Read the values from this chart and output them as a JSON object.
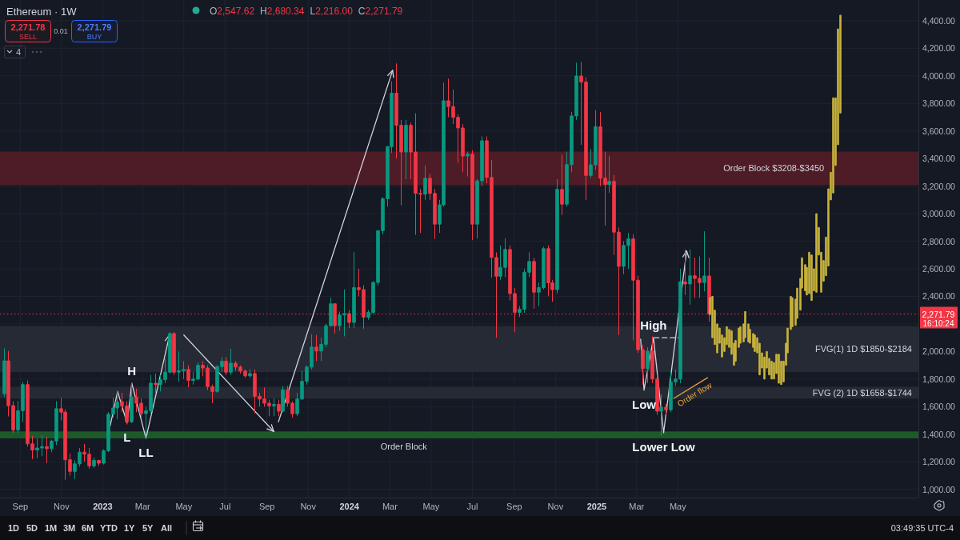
{
  "chart_data": {
    "type": "candlestick",
    "title": "Ethereum · 1W",
    "x": [
      "2022-08-08",
      "2022-08-15",
      "2022-08-22",
      "2022-08-29",
      "2022-09-05",
      "2022-09-12",
      "2022-09-19",
      "2022-09-26",
      "2022-10-03",
      "2022-10-10",
      "2022-10-17",
      "2022-10-24",
      "2022-10-31",
      "2022-11-07",
      "2022-11-14",
      "2022-11-21",
      "2022-11-28",
      "2022-12-05",
      "2022-12-12",
      "2022-12-19",
      "2022-12-26",
      "2023-01-02",
      "2023-01-09",
      "2023-01-16",
      "2023-01-23",
      "2023-01-30",
      "2023-02-06",
      "2023-02-13",
      "2023-02-20",
      "2023-02-27",
      "2023-03-06",
      "2023-03-13",
      "2023-03-20",
      "2023-03-27",
      "2023-04-03",
      "2023-04-10",
      "2023-04-17",
      "2023-04-24",
      "2023-05-01",
      "2023-05-08",
      "2023-05-15",
      "2023-05-22",
      "2023-05-29",
      "2023-06-05",
      "2023-06-12",
      "2023-06-19",
      "2023-06-26",
      "2023-07-03",
      "2023-07-10",
      "2023-07-17",
      "2023-07-24",
      "2023-07-31",
      "2023-08-07",
      "2023-08-14",
      "2023-08-21",
      "2023-08-28",
      "2023-09-04",
      "2023-09-11",
      "2023-09-18",
      "2023-09-25",
      "2023-10-02",
      "2023-10-09",
      "2023-10-16",
      "2023-10-23",
      "2023-10-30",
      "2023-11-06",
      "2023-11-13",
      "2023-11-20",
      "2023-11-27",
      "2023-12-04",
      "2023-12-11",
      "2023-12-18",
      "2023-12-25",
      "2024-01-01",
      "2024-01-08",
      "2024-01-15",
      "2024-01-22",
      "2024-01-29",
      "2024-02-05",
      "2024-02-12",
      "2024-02-19",
      "2024-02-26",
      "2024-03-04",
      "2024-03-11",
      "2024-03-18",
      "2024-03-25",
      "2024-04-01",
      "2024-04-08",
      "2024-04-15",
      "2024-04-22",
      "2024-04-29",
      "2024-05-06",
      "2024-05-13",
      "2024-05-20",
      "2024-05-27",
      "2024-06-03",
      "2024-06-10",
      "2024-06-17",
      "2024-06-24",
      "2024-07-01",
      "2024-07-08",
      "2024-07-15",
      "2024-07-22",
      "2024-07-29",
      "2024-08-05",
      "2024-08-12",
      "2024-08-19",
      "2024-08-26",
      "2024-09-02",
      "2024-09-09",
      "2024-09-16",
      "2024-09-23",
      "2024-09-30",
      "2024-10-07",
      "2024-10-14",
      "2024-10-21",
      "2024-10-28",
      "2024-11-04",
      "2024-11-11",
      "2024-11-18",
      "2024-11-25",
      "2024-12-02",
      "2024-12-09",
      "2024-12-16",
      "2024-12-23",
      "2024-12-30",
      "2025-01-06",
      "2025-01-13",
      "2025-01-20",
      "2025-01-27",
      "2025-02-03",
      "2025-02-10",
      "2025-02-17",
      "2025-02-24",
      "2025-03-03",
      "2025-03-10",
      "2025-03-17",
      "2025-03-24",
      "2025-03-31",
      "2025-04-07",
      "2025-04-14",
      "2025-04-21",
      "2025-04-28",
      "2025-05-05",
      "2025-05-12",
      "2025-05-19",
      "2025-05-26",
      "2025-06-02",
      "2025-06-09",
      "2025-06-16"
    ],
    "ohlc": [
      [
        1694,
        2023,
        1670,
        1932
      ],
      [
        1932,
        2004,
        1529,
        1607
      ],
      [
        1607,
        1640,
        1410,
        1430
      ],
      [
        1430,
        1640,
        1410,
        1570
      ],
      [
        1570,
        1780,
        1490,
        1760
      ],
      [
        1760,
        1790,
        1310,
        1330
      ],
      [
        1330,
        1390,
        1220,
        1285
      ],
      [
        1285,
        1370,
        1225,
        1300
      ],
      [
        1300,
        1390,
        1240,
        1310
      ],
      [
        1310,
        1380,
        1190,
        1295
      ],
      [
        1295,
        1360,
        1270,
        1350
      ],
      [
        1350,
        1640,
        1320,
        1585
      ],
      [
        1585,
        1665,
        1500,
        1560
      ],
      [
        1560,
        1580,
        1070,
        1215
      ],
      [
        1215,
        1260,
        1100,
        1130
      ],
      [
        1130,
        1210,
        1075,
        1185
      ],
      [
        1185,
        1300,
        1165,
        1270
      ],
      [
        1270,
        1330,
        1200,
        1255
      ],
      [
        1255,
        1300,
        1150,
        1170
      ],
      [
        1170,
        1230,
        1155,
        1210
      ],
      [
        1210,
        1215,
        1170,
        1190
      ],
      [
        1190,
        1290,
        1180,
        1280
      ],
      [
        1280,
        1560,
        1270,
        1545
      ],
      [
        1545,
        1665,
        1520,
        1590
      ],
      [
        1590,
        1715,
        1510,
        1635
      ],
      [
        1635,
        1700,
        1560,
        1605
      ],
      [
        1605,
        1640,
        1470,
        1490
      ],
      [
        1490,
        1770,
        1480,
        1670
      ],
      [
        1670,
        1730,
        1560,
        1625
      ],
      [
        1625,
        1660,
        1520,
        1550
      ],
      [
        1550,
        1600,
        1370,
        1570
      ],
      [
        1570,
        1830,
        1550,
        1770
      ],
      [
        1770,
        1840,
        1700,
        1760
      ],
      [
        1760,
        1830,
        1710,
        1795
      ],
      [
        1795,
        1945,
        1770,
        1850
      ],
      [
        1850,
        2140,
        1840,
        2130
      ],
      [
        2130,
        2140,
        1830,
        1850
      ],
      [
        1850,
        2000,
        1780,
        1860
      ],
      [
        1860,
        1930,
        1800,
        1870
      ],
      [
        1870,
        1900,
        1740,
        1790
      ],
      [
        1790,
        1850,
        1760,
        1800
      ],
      [
        1800,
        1920,
        1790,
        1900
      ],
      [
        1900,
        1930,
        1820,
        1880
      ],
      [
        1880,
        1900,
        1720,
        1745
      ],
      [
        1745,
        1760,
        1625,
        1710
      ],
      [
        1710,
        1900,
        1700,
        1890
      ],
      [
        1890,
        1960,
        1850,
        1930
      ],
      [
        1930,
        1960,
        1830,
        1850
      ],
      [
        1850,
        2020,
        1830,
        1915
      ],
      [
        1915,
        1930,
        1860,
        1887
      ],
      [
        1887,
        1900,
        1840,
        1858
      ],
      [
        1858,
        1870,
        1810,
        1823
      ],
      [
        1823,
        1870,
        1810,
        1840
      ],
      [
        1840,
        1870,
        1550,
        1675
      ],
      [
        1675,
        1700,
        1600,
        1655
      ],
      [
        1655,
        1740,
        1600,
        1625
      ],
      [
        1625,
        1650,
        1530,
        1606
      ],
      [
        1606,
        1660,
        1530,
        1616
      ],
      [
        1616,
        1650,
        1530,
        1567
      ],
      [
        1567,
        1750,
        1560,
        1722
      ],
      [
        1722,
        1750,
        1600,
        1625
      ],
      [
        1625,
        1640,
        1520,
        1548
      ],
      [
        1548,
        1700,
        1530,
        1655
      ],
      [
        1655,
        1860,
        1650,
        1784
      ],
      [
        1784,
        1900,
        1760,
        1887
      ],
      [
        1887,
        2125,
        1870,
        2032
      ],
      [
        2032,
        2120,
        1930,
        2003
      ],
      [
        2003,
        2100,
        1930,
        2052
      ],
      [
        2052,
        2200,
        2030,
        2187
      ],
      [
        2187,
        2390,
        2180,
        2346
      ],
      [
        2346,
        2350,
        2130,
        2187
      ],
      [
        2187,
        2290,
        2150,
        2265
      ],
      [
        2265,
        2450,
        2110,
        2275
      ],
      [
        2275,
        2300,
        2170,
        2211
      ],
      [
        2211,
        2720,
        2170,
        2463
      ],
      [
        2463,
        2600,
        2400,
        2449
      ],
      [
        2449,
        2480,
        2165,
        2249
      ],
      [
        2249,
        2300,
        2230,
        2284
      ],
      [
        2284,
        2510,
        2270,
        2501
      ],
      [
        2501,
        2880,
        2480,
        2876
      ],
      [
        2876,
        3120,
        2850,
        3108
      ],
      [
        3108,
        3490,
        3050,
        3486
      ],
      [
        3486,
        3960,
        3440,
        3874
      ],
      [
        3874,
        4090,
        3400,
        3641
      ],
      [
        3641,
        3680,
        3060,
        3447
      ],
      [
        3447,
        3680,
        3250,
        3641
      ],
      [
        3641,
        3660,
        3250,
        3447
      ],
      [
        3447,
        3728,
        2846,
        3147
      ],
      [
        3147,
        3180,
        2860,
        3141
      ],
      [
        3141,
        3350,
        3100,
        3257
      ],
      [
        3257,
        3290,
        3100,
        3147
      ],
      [
        3147,
        3180,
        2817,
        2924
      ],
      [
        2924,
        3100,
        2860,
        3064
      ],
      [
        3064,
        3951,
        3050,
        3819
      ],
      [
        3819,
        3980,
        3700,
        3777
      ],
      [
        3777,
        3900,
        3650,
        3699
      ],
      [
        3699,
        3720,
        3370,
        3622
      ],
      [
        3622,
        3650,
        3300,
        3418
      ],
      [
        3418,
        3450,
        3270,
        3432
      ],
      [
        3432,
        3460,
        2808,
        2924
      ],
      [
        2924,
        3250,
        2820,
        3238
      ],
      [
        3238,
        3560,
        3200,
        3529
      ],
      [
        3529,
        3560,
        3220,
        3263
      ],
      [
        3263,
        3390,
        2536,
        2682
      ],
      [
        2682,
        2720,
        2100,
        2546
      ],
      [
        2546,
        2769,
        2520,
        2610
      ],
      [
        2610,
        2820,
        2540,
        2740
      ],
      [
        2740,
        2770,
        2370,
        2420
      ],
      [
        2420,
        2460,
        2139,
        2284
      ],
      [
        2284,
        2330,
        2250,
        2307
      ],
      [
        2307,
        2600,
        2280,
        2575
      ],
      [
        2575,
        2720,
        2540,
        2653
      ],
      [
        2653,
        2680,
        2310,
        2430
      ],
      [
        2430,
        2500,
        2330,
        2463
      ],
      [
        2463,
        2760,
        2450,
        2746
      ],
      [
        2746,
        2770,
        2400,
        2498
      ],
      [
        2498,
        2520,
        2360,
        2449
      ],
      [
        2449,
        3250,
        2420,
        3176
      ],
      [
        3176,
        3428,
        2990,
        3069
      ],
      [
        3069,
        3450,
        3050,
        3356
      ],
      [
        3356,
        3738,
        3300,
        3709
      ],
      [
        3709,
        4096,
        3680,
        3999
      ],
      [
        3999,
        4100,
        3500,
        3955
      ],
      [
        3955,
        3990,
        3098,
        3277
      ],
      [
        3277,
        3470,
        3260,
        3354
      ],
      [
        3354,
        3750,
        3320,
        3631
      ],
      [
        3631,
        3738,
        3200,
        3257
      ],
      [
        3257,
        3450,
        2914,
        3211
      ],
      [
        3211,
        3420,
        3150,
        3234
      ],
      [
        3234,
        3280,
        2700,
        2866
      ],
      [
        2866,
        2900,
        2120,
        2618
      ],
      [
        2618,
        2800,
        2560,
        2769
      ],
      [
        2769,
        2860,
        2600,
        2817
      ],
      [
        2817,
        2850,
        2080,
        2517
      ],
      [
        2517,
        2550,
        1990,
        2013
      ],
      [
        2013,
        2050,
        1760,
        1877
      ],
      [
        1877,
        2030,
        1771,
        2003
      ],
      [
        2003,
        2110,
        1770,
        1800
      ],
      [
        1800,
        1830,
        1540,
        1567
      ],
      [
        1567,
        1690,
        1390,
        1596
      ],
      [
        1596,
        1620,
        1540,
        1577
      ],
      [
        1577,
        1860,
        1560,
        1780
      ],
      [
        1780,
        1870,
        1750,
        1800
      ],
      [
        1800,
        2600,
        1770,
        2506
      ],
      [
        2506,
        2740,
        2410,
        2490
      ],
      [
        2490,
        2740,
        2340,
        2549
      ],
      [
        2549,
        2680,
        2390,
        2530
      ],
      [
        2530,
        2690,
        2390,
        2500
      ],
      [
        2500,
        2872,
        2436,
        2548
      ],
      [
        2547.62,
        2680.34,
        2216,
        2271.79
      ]
    ],
    "colors": [
      "#089981",
      "#f23645",
      "#f23645",
      "#089981",
      "#089981",
      "#f23645",
      "#f23645",
      "#089981",
      "#089981",
      "#f23645",
      "#089981",
      "#089981",
      "#f23645",
      "#f23645",
      "#f23645",
      "#089981",
      "#089981",
      "#f23645",
      "#f23645",
      "#089981",
      "#f23645",
      "#089981",
      "#089981",
      "#089981",
      "#089981",
      "#f23645",
      "#f23645",
      "#089981",
      "#f23645",
      "#f23645",
      "#089981",
      "#089981",
      "#f23645",
      "#089981",
      "#089981",
      "#089981",
      "#f23645",
      "#089981",
      "#089981",
      "#f23645",
      "#089981",
      "#089981",
      "#f23645",
      "#f23645",
      "#f23645",
      "#089981",
      "#089981",
      "#f23645",
      "#089981",
      "#f23645",
      "#f23645",
      "#f23645",
      "#089981",
      "#f23645",
      "#f23645",
      "#f23645",
      "#f23645",
      "#089981",
      "#f23645",
      "#089981",
      "#f23645",
      "#f23645",
      "#089981",
      "#089981",
      "#089981",
      "#089981",
      "#f23645",
      "#089981",
      "#089981",
      "#089981",
      "#f23645",
      "#089981",
      "#089981",
      "#f23645",
      "#089981",
      "#f23645",
      "#f23645",
      "#089981",
      "#089981",
      "#089981",
      "#089981",
      "#089981",
      "#089981",
      "#f23645",
      "#f23645",
      "#089981",
      "#f23645",
      "#f23645",
      "#f23645",
      "#089981",
      "#f23645",
      "#f23645",
      "#089981",
      "#089981",
      "#f23645",
      "#f23645",
      "#f23645",
      "#f23645",
      "#089981",
      "#f23645",
      "#089981",
      "#089981",
      "#f23645",
      "#f23645",
      "#f23645",
      "#089981",
      "#089981",
      "#f23645",
      "#f23645",
      "#089981",
      "#089981",
      "#089981",
      "#f23645",
      "#089981",
      "#089981",
      "#f23645",
      "#f23645",
      "#089981",
      "#f23645",
      "#089981",
      "#089981",
      "#089981",
      "#f23645",
      "#f23645",
      "#089981",
      "#089981",
      "#f23645",
      "#f23645",
      "#089981",
      "#f23645",
      "#f23645",
      "#089981",
      "#089981",
      "#f23645",
      "#f23645",
      "#f23645",
      "#089981",
      "#f23645",
      "#f23645",
      "#089981",
      "#f23645",
      "#089981",
      "#089981",
      "#089981",
      "#f23645",
      "#089981",
      "#f23645",
      "#f23645",
      "#089981",
      "#f23645"
    ],
    "series": [
      {
        "type": "candlestick",
        "color": "#c8b43c",
        "x": [
          "2025-06-18",
          "2025-06-21",
          "2025-06-25",
          "2025-06-28",
          "2025-07-02",
          "2025-07-05",
          "2025-07-09",
          "2025-07-12",
          "2025-07-16",
          "2025-07-19",
          "2025-07-23",
          "2025-07-26",
          "2025-07-30",
          "2025-08-02",
          "2025-08-06",
          "2025-08-09",
          "2025-08-13",
          "2025-08-16",
          "2025-08-20",
          "2025-08-23",
          "2025-08-27",
          "2025-08-30",
          "2025-09-03",
          "2025-09-06",
          "2025-09-10",
          "2025-09-13",
          "2025-09-17",
          "2025-09-20",
          "2025-09-24",
          "2025-09-27",
          "2025-10-01",
          "2025-10-04",
          "2025-10-08",
          "2025-10-11",
          "2025-10-15",
          "2025-10-18",
          "2025-10-22",
          "2025-10-25",
          "2025-10-29",
          "2025-11-01",
          "2025-11-05",
          "2025-11-08",
          "2025-11-12",
          "2025-11-15",
          "2025-11-19",
          "2025-11-22",
          "2025-11-26",
          "2025-11-29",
          "2025-12-03",
          "2025-12-06",
          "2025-12-10",
          "2025-12-13",
          "2025-12-17",
          "2025-12-20",
          "2025-12-24",
          "2025-12-27"
        ],
        "ohlc": [
          [
            2268,
            2392,
            2268,
            2392
          ],
          [
            2100,
            2400,
            2100,
            2400
          ],
          [
            2050,
            2300,
            2050,
            2300
          ],
          [
            1990,
            2200,
            1990,
            2200
          ],
          [
            2060,
            2170,
            2060,
            2170
          ],
          [
            1960,
            2120,
            1960,
            2120
          ],
          [
            2000,
            2100,
            2000,
            2100
          ],
          [
            2050,
            2180,
            2050,
            2180
          ],
          [
            2030,
            2160,
            2030,
            2160
          ],
          [
            1980,
            2150,
            1980,
            2150
          ],
          [
            1900,
            2060,
            1900,
            2060
          ],
          [
            1930,
            2080,
            1930,
            2080
          ],
          [
            2030,
            2170,
            2030,
            2170
          ],
          [
            2060,
            2180,
            2060,
            2180
          ],
          [
            2070,
            2200,
            2070,
            2200
          ],
          [
            2100,
            2290,
            2100,
            2290
          ],
          [
            2070,
            2200,
            2070,
            2200
          ],
          [
            2060,
            2160,
            2060,
            2160
          ],
          [
            2030,
            2130,
            2030,
            2130
          ],
          [
            2000,
            2120,
            2000,
            2120
          ],
          [
            1990,
            2100,
            1990,
            2100
          ],
          [
            1830,
            2060,
            1830,
            2060
          ],
          [
            1880,
            1990,
            1880,
            1990
          ],
          [
            1800,
            1960,
            1800,
            1960
          ],
          [
            1880,
            2000,
            1880,
            2000
          ],
          [
            1830,
            1950,
            1830,
            1950
          ],
          [
            1800,
            1930,
            1800,
            1930
          ],
          [
            1800,
            1920,
            1800,
            1920
          ],
          [
            1840,
            1980,
            1840,
            1980
          ],
          [
            1770,
            1980,
            1770,
            1980
          ],
          [
            1760,
            1930,
            1760,
            1930
          ],
          [
            1780,
            1930,
            1780,
            1930
          ],
          [
            1900,
            2060,
            1900,
            2060
          ],
          [
            1990,
            2170,
            1990,
            2170
          ],
          [
            2160,
            2400,
            2160,
            2400
          ],
          [
            2180,
            2390,
            2180,
            2390
          ],
          [
            2190,
            2380,
            2190,
            2380
          ],
          [
            2240,
            2460,
            2240,
            2460
          ],
          [
            2300,
            2530,
            2300,
            2530
          ],
          [
            2460,
            2680,
            2460,
            2680
          ],
          [
            2440,
            2630,
            2440,
            2630
          ],
          [
            2410,
            2610,
            2410,
            2610
          ],
          [
            2420,
            2720,
            2420,
            2720
          ],
          [
            2370,
            2700,
            2370,
            2700
          ],
          [
            2440,
            2600,
            2440,
            2600
          ],
          [
            2430,
            3000,
            2430,
            3000
          ],
          [
            2700,
            2900,
            2700,
            2900
          ],
          [
            2430,
            2720,
            2430,
            2720
          ],
          [
            2510,
            2660,
            2510,
            2660
          ],
          [
            2550,
            2830,
            2550,
            2830
          ],
          [
            2620,
            3180,
            2620,
            3180
          ],
          [
            3100,
            3300,
            3100,
            3300
          ],
          [
            3150,
            3840,
            3150,
            3840
          ],
          [
            3350,
            3840,
            3350,
            3840
          ],
          [
            3500,
            4340,
            3500,
            4340
          ],
          [
            3730,
            4440,
            3730,
            4440
          ]
        ]
      },
      {
        "type": "line",
        "color": "#d1d4dc",
        "x": [
          "2023-01-12",
          "2023-01-23",
          "2023-02-06",
          "2023-02-13",
          "2023-03-06",
          "2023-04-10"
        ],
        "values": [
          1460,
          1710,
          1480,
          1770,
          1370,
          2120
        ]
      },
      {
        "type": "line",
        "color": "#d1d4dc",
        "x": [
          "2023-05-01",
          "2023-09-11"
        ],
        "values": [
          2120,
          1420
        ]
      },
      {
        "type": "line",
        "color": "#d1d4dc",
        "x": [
          "2023-09-18",
          "2024-03-05"
        ],
        "values": [
          1490,
          4040
        ]
      },
      {
        "type": "line",
        "color": "#d1d4dc",
        "x": [
          "2025-03-07",
          "2025-03-12",
          "2025-03-26",
          "2025-04-10",
          "2025-05-14"
        ],
        "values": [
          2090,
          1720,
          2100,
          1410,
          2730
        ]
      },
      {
        "type": "line",
        "color": "#d1d4dc",
        "line_style": "dashed",
        "x": [
          "2025-03-27",
          "2025-05-04"
        ],
        "values": [
          2100,
          2100
        ]
      },
      {
        "type": "line",
        "name": "Order flow",
        "color": "#e8a33d",
        "x": [
          "2025-04-25",
          "2025-06-14"
        ],
        "values": [
          1660,
          1810
        ]
      }
    ],
    "xlim": [
      "2022-08-02",
      "2026-04-22"
    ],
    "ylim": [
      940,
      4550
    ],
    "xticks": [
      {
        "value": "2022-09-01",
        "label": "Sep"
      },
      {
        "value": "2022-11-01",
        "label": "Nov"
      },
      "2023",
      {
        "value": "2023-03-01",
        "label": "Mar"
      },
      {
        "value": "2023-05-01",
        "label": "May"
      },
      {
        "value": "2023-07-01",
        "label": "Jul"
      },
      {
        "value": "2023-09-01",
        "label": "Sep"
      },
      {
        "value": "2023-11-01",
        "label": "Nov"
      },
      "2024",
      {
        "value": "2024-03-01",
        "label": "Mar"
      },
      {
        "value": "2024-05-01",
        "label": "May"
      },
      {
        "value": "2024-07-01",
        "label": "Jul"
      },
      {
        "value": "2024-09-01",
        "label": "Sep"
      },
      {
        "value": "2024-11-01",
        "label": "Nov"
      },
      "2025",
      {
        "value": "2025-03-01",
        "label": "Mar"
      },
      {
        "value": "2025-05-01",
        "label": "May"
      }
    ],
    "yticks": [
      {
        "value": 1000,
        "label": "1,000.00"
      },
      {
        "value": 1200,
        "label": "1,200.00"
      },
      {
        "value": 1400,
        "label": "1,400.00"
      },
      {
        "value": 1600,
        "label": "1,600.00"
      },
      {
        "value": 1800,
        "label": "1,800.00"
      },
      {
        "value": 2000,
        "label": "2,000.00"
      },
      {
        "value": 2200,
        "label": null
      },
      {
        "value": 2400,
        "label": "2,400.00"
      },
      {
        "value": 2600,
        "label": "2,600.00"
      },
      {
        "value": 2800,
        "label": "2,800.00"
      },
      {
        "value": 3000,
        "label": "3,000.00"
      },
      {
        "value": 3200,
        "label": "3,200.00"
      },
      {
        "value": 3400,
        "label": "3,400.00"
      },
      {
        "value": 3600,
        "label": "3,600.00"
      },
      {
        "value": 3800,
        "label": "3,800.00"
      },
      {
        "value": 4000,
        "label": "4,000.00"
      },
      {
        "value": 4200,
        "label": "4,200.00"
      },
      {
        "value": 4400,
        "label": "4,400.00"
      }
    ],
    "grid": true,
    "bands": [
      {
        "axis": "y",
        "from": 1370,
        "to": 1420,
        "label": "Order Block",
        "color": "#1d5a2a"
      },
      {
        "axis": "y",
        "from": 3208,
        "to": 3450,
        "label": "Order Block $3208-$3450",
        "color": "#4e1c26"
      },
      {
        "axis": "y",
        "from": 1850,
        "to": 2184,
        "label": "FVG(1) 1D $1850-$2184",
        "color": "#262a35"
      },
      {
        "axis": "y",
        "from": 1658,
        "to": 1744,
        "label": "FVG (2) 1D $1658-$1744",
        "color": "#262a35"
      }
    ],
    "ref_lines": [
      {
        "axis": "y",
        "value": 2271.79,
        "label": "2,271.79",
        "color": "#f23645",
        "line_style": "dotted"
      }
    ],
    "annotations": [
      "O2,547.62 H2,680.34 L2,216.00 C2,271.79",
      "2,271.78",
      "SELL",
      "0.01",
      "2,271.79",
      "BUY",
      "4",
      "16:10:24",
      "1D 5D 1M 3M 6M YTD 1Y 5Y All",
      "03:49:35 UTC-4",
      {
        "text": "H",
        "x": "2023-02-13",
        "y": 1770
      },
      {
        "text": "L",
        "x": "2023-02-06",
        "y": 1480
      },
      {
        "text": "LL",
        "x": "2023-03-06",
        "y": 1370
      },
      {
        "text": "High",
        "x": "2025-03-26",
        "y": 2100
      },
      {
        "text": "Low",
        "x": "2025-03-12",
        "y": 1720
      },
      {
        "text": "Lower Low",
        "x": "2025-04-10",
        "y": 1410
      }
    ]
  }
}
